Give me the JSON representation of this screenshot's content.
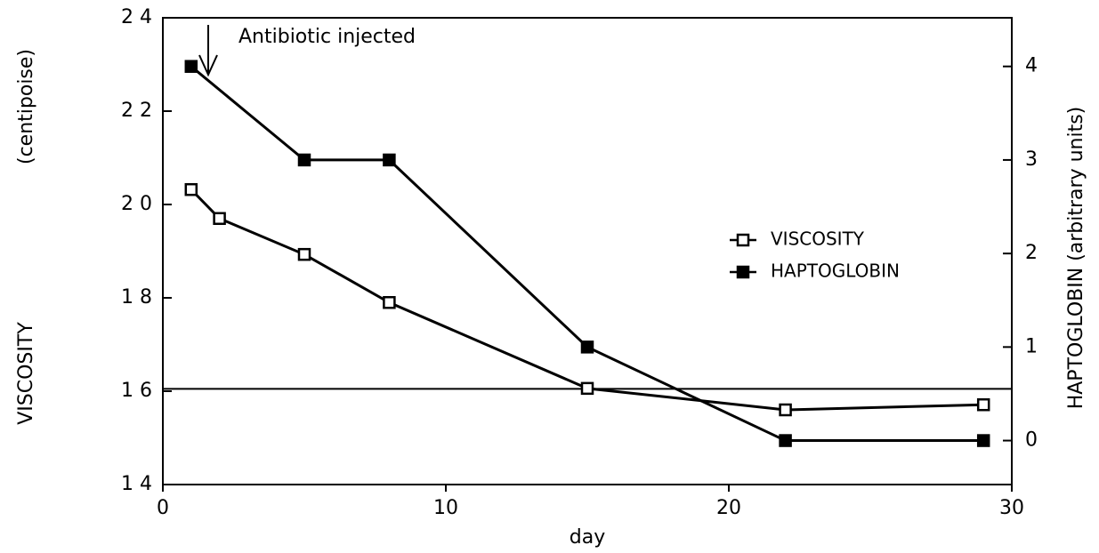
{
  "chart_data": {
    "type": "line",
    "annotation": "Antibiotic injected",
    "xlabel": "day",
    "ylabel": "VISCOSITY",
    "ylabel_unit": "(centipoise)",
    "y2label": "HAPTOGLOBIN (arbitrary units)",
    "xlim": [
      0,
      30
    ],
    "xticks": [
      0,
      10,
      20,
      30
    ],
    "ylim": [
      14,
      24
    ],
    "yticks": [
      {
        "value": 14,
        "label": "1 4"
      },
      {
        "value": 16,
        "label": "1 6"
      },
      {
        "value": 18,
        "label": "1 8"
      },
      {
        "value": 20,
        "label": "2 0"
      },
      {
        "value": 22,
        "label": "2 2"
      },
      {
        "value": 24,
        "label": "2 4"
      }
    ],
    "y2lim": [
      -0.47,
      4.52
    ],
    "y2ticks": [
      0,
      1,
      2,
      3,
      4
    ],
    "reference_line": 16.05,
    "legend": "right",
    "series": [
      {
        "name": "VISCOSITY",
        "color": "#000000",
        "marker": "open",
        "x": [
          1,
          2,
          5,
          8,
          15,
          22,
          29
        ],
        "values": [
          20.32,
          19.7,
          18.93,
          17.9,
          16.06,
          15.6,
          15.71
        ]
      },
      {
        "name": "HAPTOGLOBIN",
        "color": "#000000",
        "marker": "filled",
        "axis": "y2",
        "x": [
          1,
          5,
          8,
          15,
          22,
          29
        ],
        "values": [
          4,
          3,
          3,
          1,
          0,
          0
        ]
      }
    ]
  }
}
